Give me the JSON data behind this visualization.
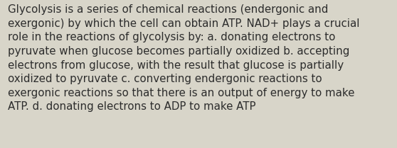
{
  "lines": [
    "Glycolysis is a series of chemical reactions (endergonic and",
    "exergonic) by which the cell can obtain ATP. NAD+ plays a crucial",
    "role in the reactions of glycolysis by: a. donating electrons to",
    "pyruvate when glucose becomes partially oxidized b. accepting",
    "electrons from glucose, with the result that glucose is partially",
    "oxidized to pyruvate c. converting endergonic reactions to",
    "exergonic reactions so that there is an output of energy to make",
    "ATP. d. donating electrons to ADP to make ATP"
  ],
  "background_color": "#d8d5c9",
  "text_color": "#2c2c2c",
  "font_size": 10.8,
  "fig_width": 5.58,
  "fig_height": 2.09,
  "dpi": 100
}
